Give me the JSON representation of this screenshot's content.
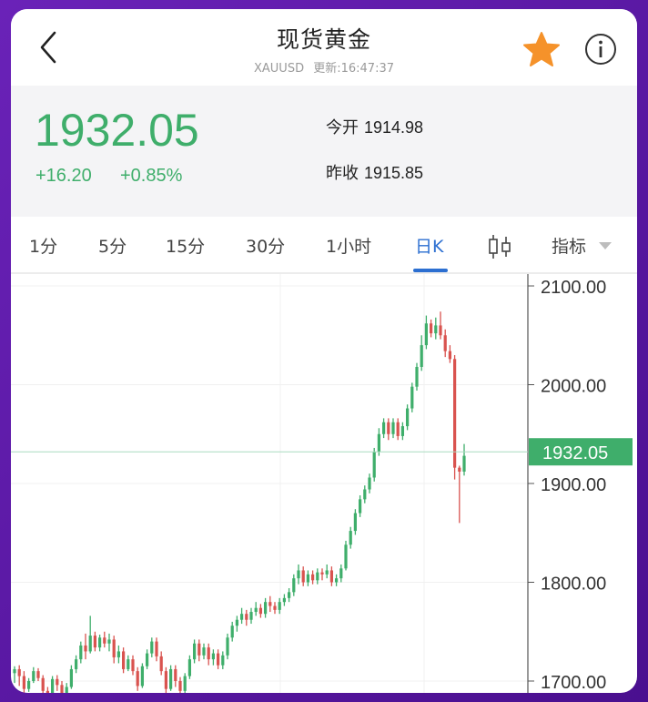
{
  "header": {
    "title": "现货黄金",
    "symbol": "XAUUSD",
    "updated": "更新:16:47:37"
  },
  "quote": {
    "price": "1932.05",
    "change": "+16.20",
    "change_pct": "+0.85%",
    "open_label": "今开",
    "open_value": "1914.98",
    "prev_close_label": "昨收",
    "prev_close_value": "1915.85",
    "up_color": "#3fae6b",
    "down_color": "#d9534f"
  },
  "tabs": [
    {
      "label": "1分",
      "active": false
    },
    {
      "label": "5分",
      "active": false
    },
    {
      "label": "15分",
      "active": false
    },
    {
      "label": "30分",
      "active": false
    },
    {
      "label": "1小时",
      "active": false
    },
    {
      "label": "日K",
      "active": true
    }
  ],
  "indicator_label": "指标",
  "icons": [
    "back-arrow-icon",
    "star-icon",
    "info-icon",
    "candlestick-icon",
    "chevron-down-icon"
  ],
  "chart_data": {
    "type": "candlestick",
    "y_ticks": [
      "2100.00",
      "2000.00",
      "1900.00",
      "1800.00",
      "1700.00"
    ],
    "ylim": [
      1688,
      2112
    ],
    "current_price_label": "1932.05",
    "current_price": 1932.05,
    "candles": [
      [
        1708,
        1712,
        1698,
        1715
      ],
      [
        1712,
        1705,
        1695,
        1716
      ],
      [
        1705,
        1692,
        1688,
        1710
      ],
      [
        1692,
        1700,
        1689,
        1703
      ],
      [
        1700,
        1710,
        1698,
        1714
      ],
      [
        1710,
        1703,
        1700,
        1713
      ],
      [
        1703,
        1690,
        1686,
        1706
      ],
      [
        1690,
        1683,
        1680,
        1694
      ],
      [
        1683,
        1702,
        1681,
        1705
      ],
      [
        1702,
        1696,
        1690,
        1706
      ],
      [
        1696,
        1688,
        1684,
        1700
      ],
      [
        1688,
        1694,
        1685,
        1698
      ],
      [
        1694,
        1712,
        1692,
        1716
      ],
      [
        1712,
        1722,
        1708,
        1726
      ],
      [
        1722,
        1736,
        1718,
        1740
      ],
      [
        1736,
        1730,
        1722,
        1748
      ],
      [
        1730,
        1746,
        1728,
        1766
      ],
      [
        1746,
        1734,
        1730,
        1750
      ],
      [
        1734,
        1744,
        1730,
        1747
      ],
      [
        1744,
        1738,
        1734,
        1750
      ],
      [
        1738,
        1742,
        1730,
        1748
      ],
      [
        1742,
        1724,
        1718,
        1746
      ],
      [
        1724,
        1730,
        1718,
        1736
      ],
      [
        1730,
        1712,
        1708,
        1734
      ],
      [
        1712,
        1722,
        1710,
        1726
      ],
      [
        1722,
        1710,
        1706,
        1726
      ],
      [
        1710,
        1695,
        1690,
        1714
      ],
      [
        1695,
        1715,
        1693,
        1718
      ],
      [
        1715,
        1728,
        1712,
        1732
      ],
      [
        1728,
        1740,
        1724,
        1744
      ],
      [
        1740,
        1725,
        1720,
        1744
      ],
      [
        1725,
        1710,
        1706,
        1730
      ],
      [
        1710,
        1692,
        1688,
        1714
      ],
      [
        1692,
        1712,
        1690,
        1716
      ],
      [
        1712,
        1700,
        1694,
        1716
      ],
      [
        1700,
        1690,
        1686,
        1704
      ],
      [
        1690,
        1705,
        1688,
        1708
      ],
      [
        1705,
        1722,
        1702,
        1726
      ],
      [
        1722,
        1738,
        1718,
        1742
      ],
      [
        1738,
        1726,
        1720,
        1742
      ],
      [
        1726,
        1734,
        1722,
        1738
      ],
      [
        1734,
        1722,
        1716,
        1738
      ],
      [
        1722,
        1728,
        1716,
        1732
      ],
      [
        1728,
        1716,
        1712,
        1732
      ],
      [
        1716,
        1726,
        1712,
        1730
      ],
      [
        1726,
        1744,
        1722,
        1748
      ],
      [
        1744,
        1756,
        1740,
        1760
      ],
      [
        1756,
        1762,
        1750,
        1766
      ],
      [
        1762,
        1768,
        1758,
        1774
      ],
      [
        1768,
        1762,
        1756,
        1772
      ],
      [
        1762,
        1770,
        1758,
        1774
      ],
      [
        1770,
        1774,
        1766,
        1780
      ],
      [
        1774,
        1768,
        1764,
        1778
      ],
      [
        1768,
        1780,
        1764,
        1784
      ],
      [
        1780,
        1776,
        1770,
        1786
      ],
      [
        1776,
        1772,
        1768,
        1780
      ],
      [
        1772,
        1780,
        1768,
        1784
      ],
      [
        1780,
        1784,
        1776,
        1788
      ],
      [
        1784,
        1790,
        1780,
        1794
      ],
      [
        1790,
        1804,
        1786,
        1808
      ],
      [
        1804,
        1812,
        1798,
        1818
      ],
      [
        1812,
        1800,
        1796,
        1816
      ],
      [
        1800,
        1808,
        1796,
        1812
      ],
      [
        1808,
        1802,
        1798,
        1812
      ],
      [
        1802,
        1810,
        1798,
        1814
      ],
      [
        1810,
        1808,
        1802,
        1814
      ],
      [
        1808,
        1812,
        1804,
        1818
      ],
      [
        1812,
        1800,
        1796,
        1816
      ],
      [
        1800,
        1804,
        1796,
        1808
      ],
      [
        1804,
        1814,
        1800,
        1818
      ],
      [
        1814,
        1838,
        1812,
        1842
      ],
      [
        1838,
        1852,
        1834,
        1856
      ],
      [
        1852,
        1870,
        1848,
        1874
      ],
      [
        1870,
        1884,
        1866,
        1888
      ],
      [
        1884,
        1894,
        1880,
        1898
      ],
      [
        1894,
        1906,
        1890,
        1910
      ],
      [
        1906,
        1932,
        1902,
        1936
      ],
      [
        1932,
        1950,
        1928,
        1956
      ],
      [
        1950,
        1962,
        1946,
        1966
      ],
      [
        1962,
        1950,
        1944,
        1966
      ],
      [
        1950,
        1962,
        1946,
        1966
      ],
      [
        1962,
        1948,
        1944,
        1966
      ],
      [
        1948,
        1958,
        1944,
        1962
      ],
      [
        1958,
        1976,
        1954,
        1980
      ],
      [
        1976,
        1998,
        1972,
        2002
      ],
      [
        1998,
        2018,
        1994,
        2022
      ],
      [
        2018,
        2040,
        2014,
        2050
      ],
      [
        2040,
        2062,
        2036,
        2070
      ],
      [
        2062,
        2052,
        2048,
        2066
      ],
      [
        2052,
        2060,
        2046,
        2068
      ],
      [
        2060,
        2050,
        2046,
        2074
      ],
      [
        2050,
        2034,
        2028,
        2056
      ],
      [
        2034,
        2026,
        2022,
        2040
      ],
      [
        2026,
        1916,
        1904,
        2030
      ],
      [
        1916,
        1912,
        1860,
        1918
      ],
      [
        1912,
        1928,
        1908,
        1940
      ]
    ]
  }
}
